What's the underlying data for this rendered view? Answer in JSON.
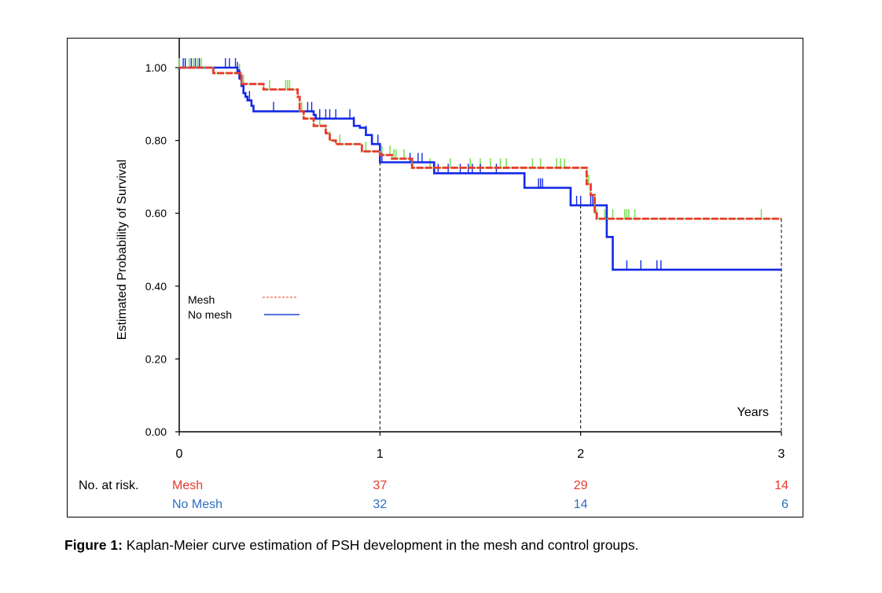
{
  "chart_data": {
    "type": "line",
    "subtype": "kaplan-meier",
    "title": "",
    "xlabel": "Years",
    "ylabel": "Estimated  Probability  of  Survival",
    "xlim": [
      0,
      3
    ],
    "ylim": [
      0,
      1
    ],
    "x_ticks": [
      "0",
      "1",
      "2",
      "3"
    ],
    "y_ticks": [
      "0.00",
      "0.20",
      "0.40",
      "0.60",
      "0.80",
      "1.00"
    ],
    "grid": false,
    "legend": {
      "placement": "center-left",
      "entries": [
        {
          "label": "Mesh",
          "style": "dashed",
          "color": "#e8392b"
        },
        {
          "label": "No mesh",
          "style": "solid",
          "color": "#1428e6"
        }
      ]
    },
    "reference_lines_x": [
      1,
      2,
      3
    ],
    "series": [
      {
        "name": "Mesh",
        "color": "#e8392b",
        "style": "dashed",
        "censor_color": "#7ee05a",
        "steps": [
          [
            0,
            1.0
          ],
          [
            0.17,
            0.985
          ],
          [
            0.3,
            0.985
          ],
          [
            0.31,
            0.955
          ],
          [
            0.4,
            0.955
          ],
          [
            0.42,
            0.94
          ],
          [
            0.58,
            0.94
          ],
          [
            0.59,
            0.92
          ],
          [
            0.6,
            0.88
          ],
          [
            0.62,
            0.86
          ],
          [
            0.67,
            0.84
          ],
          [
            0.73,
            0.82
          ],
          [
            0.75,
            0.8
          ],
          [
            0.78,
            0.79
          ],
          [
            0.9,
            0.79
          ],
          [
            0.91,
            0.77
          ],
          [
            0.98,
            0.77
          ],
          [
            1.0,
            0.76
          ],
          [
            1.06,
            0.75
          ],
          [
            1.15,
            0.75
          ],
          [
            1.16,
            0.725
          ],
          [
            2.02,
            0.725
          ],
          [
            2.03,
            0.68
          ],
          [
            2.05,
            0.65
          ],
          [
            2.07,
            0.6
          ],
          [
            2.08,
            0.585
          ],
          [
            3.0,
            0.585
          ]
        ],
        "censored": [
          0.0,
          0.03,
          0.05,
          0.07,
          0.09,
          0.1,
          0.11,
          0.3,
          0.32,
          0.45,
          0.53,
          0.54,
          0.55,
          0.61,
          0.7,
          0.75,
          0.8,
          0.93,
          1.01,
          1.05,
          1.07,
          1.08,
          1.12,
          1.16,
          1.25,
          1.35,
          1.45,
          1.5,
          1.55,
          1.6,
          1.63,
          1.76,
          1.8,
          1.88,
          1.9,
          1.92,
          2.04,
          2.08,
          2.12,
          2.16,
          2.22,
          2.23,
          2.24,
          2.27,
          2.9
        ]
      },
      {
        "name": "No mesh",
        "color": "#1428e6",
        "style": "solid",
        "steps": [
          [
            0,
            1.0
          ],
          [
            0.27,
            1.0
          ],
          [
            0.29,
            0.99
          ],
          [
            0.3,
            0.97
          ],
          [
            0.31,
            0.95
          ],
          [
            0.32,
            0.93
          ],
          [
            0.33,
            0.92
          ],
          [
            0.34,
            0.91
          ],
          [
            0.36,
            0.895
          ],
          [
            0.37,
            0.88
          ],
          [
            0.58,
            0.88
          ],
          [
            0.67,
            0.87
          ],
          [
            0.68,
            0.86
          ],
          [
            0.86,
            0.86
          ],
          [
            0.87,
            0.84
          ],
          [
            0.9,
            0.835
          ],
          [
            0.93,
            0.815
          ],
          [
            0.96,
            0.79
          ],
          [
            0.98,
            0.79
          ],
          [
            1.0,
            0.74
          ],
          [
            1.04,
            0.74
          ],
          [
            1.14,
            0.74
          ],
          [
            1.26,
            0.74
          ],
          [
            1.27,
            0.71
          ],
          [
            1.7,
            0.71
          ],
          [
            1.72,
            0.67
          ],
          [
            1.94,
            0.67
          ],
          [
            1.95,
            0.622
          ],
          [
            2.12,
            0.622
          ],
          [
            2.13,
            0.535
          ],
          [
            2.15,
            0.535
          ],
          [
            2.16,
            0.445
          ],
          [
            3.0,
            0.445
          ]
        ],
        "censored": [
          0.02,
          0.03,
          0.06,
          0.08,
          0.1,
          0.23,
          0.25,
          0.28,
          0.29,
          0.3,
          0.35,
          0.47,
          0.64,
          0.66,
          0.7,
          0.73,
          0.75,
          0.78,
          0.85,
          0.87,
          0.93,
          0.99,
          1.01,
          1.15,
          1.19,
          1.21,
          1.29,
          1.34,
          1.4,
          1.44,
          1.46,
          1.5,
          1.58,
          1.79,
          1.8,
          1.81,
          1.98,
          2.0,
          2.05,
          2.06,
          2.23,
          2.3,
          2.38,
          2.4
        ]
      }
    ],
    "risk_table": {
      "label": "No. at risk.",
      "rows": [
        {
          "group": "Mesh",
          "color": "#e8392b",
          "values": [
            "37",
            "29",
            "14"
          ]
        },
        {
          "group": "No Mesh",
          "color": "#2e6fbf",
          "values": [
            "32",
            "14",
            "6"
          ]
        }
      ],
      "at_years": [
        1,
        2,
        3
      ]
    }
  },
  "caption": {
    "label": "Figure 1:",
    "text": " Kaplan-Meier curve estimation of PSH development in the mesh and control groups."
  }
}
